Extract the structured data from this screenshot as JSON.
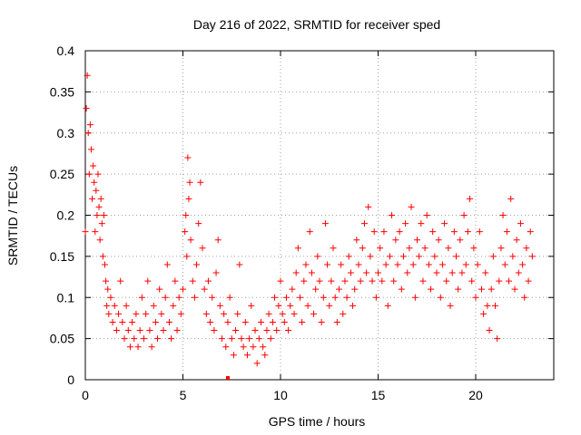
{
  "chart_data": {
    "type": "scatter",
    "title": "Day 216 of 2022, SRMTID for receiver sped",
    "xlabel": "GPS time / hours",
    "ylabel": "SRMTID / TECUs",
    "xlim": [
      0,
      24
    ],
    "ylim": [
      0,
      0.4
    ],
    "x_ticks": [
      0,
      5,
      10,
      15,
      20
    ],
    "x_tick_labels": [
      "0",
      "5",
      "10",
      "15",
      "20"
    ],
    "y_ticks": [
      0,
      0.05,
      0.1,
      0.15,
      0.2,
      0.25,
      0.3,
      0.35,
      0.4
    ],
    "y_tick_labels": [
      "0",
      "0.05",
      "0.1",
      "0.15",
      "0.2",
      "0.25",
      "0.3",
      "0.35",
      "0.4"
    ],
    "grid": true,
    "marker": "+",
    "color": "#ff0000",
    "series": [
      {
        "name": "SRMTID",
        "points": [
          [
            0.0,
            0.18
          ],
          [
            0.05,
            0.33
          ],
          [
            0.1,
            0.37
          ],
          [
            0.15,
            0.3
          ],
          [
            0.2,
            0.25
          ],
          [
            0.25,
            0.31
          ],
          [
            0.3,
            0.28
          ],
          [
            0.35,
            0.22
          ],
          [
            0.4,
            0.26
          ],
          [
            0.45,
            0.24
          ],
          [
            0.5,
            0.18
          ],
          [
            0.55,
            0.23
          ],
          [
            0.6,
            0.2
          ],
          [
            0.65,
            0.25
          ],
          [
            0.7,
            0.21
          ],
          [
            0.75,
            0.17
          ],
          [
            0.8,
            0.22
          ],
          [
            0.85,
            0.19
          ],
          [
            0.9,
            0.15
          ],
          [
            0.95,
            0.2
          ],
          [
            1.0,
            0.14
          ],
          [
            1.05,
            0.12
          ],
          [
            1.1,
            0.09
          ],
          [
            1.15,
            0.11
          ],
          [
            1.2,
            0.08
          ],
          [
            1.3,
            0.1
          ],
          [
            1.4,
            0.07
          ],
          [
            1.5,
            0.09
          ],
          [
            1.6,
            0.06
          ],
          [
            1.7,
            0.08
          ],
          [
            1.8,
            0.12
          ],
          [
            1.9,
            0.07
          ],
          [
            2.0,
            0.05
          ],
          [
            2.1,
            0.09
          ],
          [
            2.2,
            0.06
          ],
          [
            2.3,
            0.04
          ],
          [
            2.4,
            0.07
          ],
          [
            2.5,
            0.05
          ],
          [
            2.6,
            0.08
          ],
          [
            2.7,
            0.04
          ],
          [
            2.8,
            0.06
          ],
          [
            2.9,
            0.1
          ],
          [
            3.0,
            0.05
          ],
          [
            3.1,
            0.08
          ],
          [
            3.2,
            0.12
          ],
          [
            3.3,
            0.06
          ],
          [
            3.4,
            0.04
          ],
          [
            3.5,
            0.09
          ],
          [
            3.6,
            0.07
          ],
          [
            3.7,
            0.05
          ],
          [
            3.8,
            0.11
          ],
          [
            3.9,
            0.08
          ],
          [
            4.0,
            0.06
          ],
          [
            4.1,
            0.1
          ],
          [
            4.2,
            0.14
          ],
          [
            4.3,
            0.07
          ],
          [
            4.4,
            0.05
          ],
          [
            4.5,
            0.09
          ],
          [
            4.6,
            0.12
          ],
          [
            4.7,
            0.06
          ],
          [
            4.8,
            0.1
          ],
          [
            4.9,
            0.08
          ],
          [
            5.0,
            0.11
          ],
          [
            5.1,
            0.18
          ],
          [
            5.15,
            0.2
          ],
          [
            5.2,
            0.15
          ],
          [
            5.25,
            0.27
          ],
          [
            5.3,
            0.22
          ],
          [
            5.35,
            0.24
          ],
          [
            5.4,
            0.17
          ],
          [
            5.5,
            0.12
          ],
          [
            5.6,
            0.1
          ],
          [
            5.7,
            0.14
          ],
          [
            5.8,
            0.19
          ],
          [
            5.9,
            0.24
          ],
          [
            6.0,
            0.16
          ],
          [
            6.1,
            0.11
          ],
          [
            6.2,
            0.08
          ],
          [
            6.3,
            0.12
          ],
          [
            6.4,
            0.07
          ],
          [
            6.5,
            0.1
          ],
          [
            6.6,
            0.06
          ],
          [
            6.7,
            0.13
          ],
          [
            6.8,
            0.17
          ],
          [
            6.9,
            0.09
          ],
          [
            7.0,
            0.05
          ],
          [
            7.1,
            0.08
          ],
          [
            7.2,
            0.04
          ],
          [
            7.3,
            0.07
          ],
          [
            7.4,
            0.1
          ],
          [
            7.5,
            0.05
          ],
          [
            7.6,
            0.03
          ],
          [
            7.7,
            0.06
          ],
          [
            7.8,
            0.08
          ],
          [
            7.9,
            0.14
          ],
          [
            8.0,
            0.05
          ],
          [
            8.1,
            0.04
          ],
          [
            8.2,
            0.07
          ],
          [
            8.3,
            0.03
          ],
          [
            8.4,
            0.05
          ],
          [
            8.5,
            0.09
          ],
          [
            8.6,
            0.04
          ],
          [
            8.7,
            0.06
          ],
          [
            8.8,
            0.02
          ],
          [
            8.9,
            0.05
          ],
          [
            9.0,
            0.07
          ],
          [
            9.1,
            0.04
          ],
          [
            9.2,
            0.03
          ],
          [
            9.3,
            0.06
          ],
          [
            9.4,
            0.08
          ],
          [
            9.5,
            0.05
          ],
          [
            9.6,
            0.07
          ],
          [
            9.7,
            0.1
          ],
          [
            9.8,
            0.06
          ],
          [
            9.9,
            0.09
          ],
          [
            10.0,
            0.12
          ],
          [
            10.1,
            0.08
          ],
          [
            10.2,
            0.07
          ],
          [
            10.3,
            0.1
          ],
          [
            10.4,
            0.06
          ],
          [
            10.5,
            0.09
          ],
          [
            10.6,
            0.11
          ],
          [
            10.7,
            0.08
          ],
          [
            10.8,
            0.13
          ],
          [
            10.9,
            0.16
          ],
          [
            11.0,
            0.1
          ],
          [
            11.1,
            0.07
          ],
          [
            11.2,
            0.12
          ],
          [
            11.3,
            0.14
          ],
          [
            11.4,
            0.09
          ],
          [
            11.5,
            0.18
          ],
          [
            11.6,
            0.13
          ],
          [
            11.7,
            0.08
          ],
          [
            11.8,
            0.11
          ],
          [
            11.9,
            0.15
          ],
          [
            12.0,
            0.12
          ],
          [
            12.1,
            0.07
          ],
          [
            12.2,
            0.1
          ],
          [
            12.3,
            0.19
          ],
          [
            12.4,
            0.14
          ],
          [
            12.5,
            0.09
          ],
          [
            12.6,
            0.12
          ],
          [
            12.7,
            0.16
          ],
          [
            12.8,
            0.1
          ],
          [
            12.9,
            0.07
          ],
          [
            13.0,
            0.11
          ],
          [
            13.1,
            0.14
          ],
          [
            13.2,
            0.08
          ],
          [
            13.3,
            0.12
          ],
          [
            13.4,
            0.1
          ],
          [
            13.5,
            0.15
          ],
          [
            13.6,
            0.13
          ],
          [
            13.7,
            0.09
          ],
          [
            13.8,
            0.11
          ],
          [
            13.9,
            0.17
          ],
          [
            14.0,
            0.14
          ],
          [
            14.1,
            0.12
          ],
          [
            14.2,
            0.16
          ],
          [
            14.3,
            0.19
          ],
          [
            14.4,
            0.13
          ],
          [
            14.5,
            0.21
          ],
          [
            14.6,
            0.15
          ],
          [
            14.7,
            0.12
          ],
          [
            14.8,
            0.18
          ],
          [
            14.9,
            0.1
          ],
          [
            15.0,
            0.13
          ],
          [
            15.1,
            0.16
          ],
          [
            15.2,
            0.12
          ],
          [
            15.3,
            0.18
          ],
          [
            15.4,
            0.14
          ],
          [
            15.5,
            0.09
          ],
          [
            15.6,
            0.15
          ],
          [
            15.7,
            0.2
          ],
          [
            15.8,
            0.12
          ],
          [
            15.9,
            0.17
          ],
          [
            16.0,
            0.14
          ],
          [
            16.1,
            0.18
          ],
          [
            16.2,
            0.11
          ],
          [
            16.3,
            0.15
          ],
          [
            16.4,
            0.19
          ],
          [
            16.5,
            0.13
          ],
          [
            16.6,
            0.16
          ],
          [
            16.7,
            0.21
          ],
          [
            16.8,
            0.14
          ],
          [
            16.9,
            0.1
          ],
          [
            17.0,
            0.17
          ],
          [
            17.1,
            0.15
          ],
          [
            17.2,
            0.19
          ],
          [
            17.3,
            0.12
          ],
          [
            17.4,
            0.16
          ],
          [
            17.5,
            0.2
          ],
          [
            17.6,
            0.14
          ],
          [
            17.7,
            0.11
          ],
          [
            17.8,
            0.18
          ],
          [
            17.9,
            0.15
          ],
          [
            18.0,
            0.13
          ],
          [
            18.1,
            0.17
          ],
          [
            18.2,
            0.1
          ],
          [
            18.3,
            0.14
          ],
          [
            18.4,
            0.19
          ],
          [
            18.5,
            0.12
          ],
          [
            18.6,
            0.16
          ],
          [
            18.7,
            0.09
          ],
          [
            18.8,
            0.13
          ],
          [
            18.9,
            0.18
          ],
          [
            19.0,
            0.15
          ],
          [
            19.1,
            0.11
          ],
          [
            19.2,
            0.17
          ],
          [
            19.3,
            0.13
          ],
          [
            19.4,
            0.2
          ],
          [
            19.5,
            0.14
          ],
          [
            19.6,
            0.18
          ],
          [
            19.7,
            0.22
          ],
          [
            19.8,
            0.12
          ],
          [
            19.9,
            0.16
          ],
          [
            20.0,
            0.1
          ],
          [
            20.1,
            0.14
          ],
          [
            20.2,
            0.18
          ],
          [
            20.3,
            0.11
          ],
          [
            20.4,
            0.08
          ],
          [
            20.5,
            0.13
          ],
          [
            20.6,
            0.09
          ],
          [
            20.7,
            0.06
          ],
          [
            20.8,
            0.11
          ],
          [
            20.9,
            0.15
          ],
          [
            21.0,
            0.09
          ],
          [
            21.1,
            0.05
          ],
          [
            21.2,
            0.12
          ],
          [
            21.3,
            0.16
          ],
          [
            21.4,
            0.2
          ],
          [
            21.5,
            0.14
          ],
          [
            21.6,
            0.18
          ],
          [
            21.7,
            0.12
          ],
          [
            21.8,
            0.22
          ],
          [
            21.9,
            0.15
          ],
          [
            22.0,
            0.11
          ],
          [
            22.1,
            0.17
          ],
          [
            22.2,
            0.13
          ],
          [
            22.3,
            0.19
          ],
          [
            22.4,
            0.14
          ],
          [
            22.5,
            0.1
          ],
          [
            22.6,
            0.16
          ],
          [
            22.7,
            0.12
          ],
          [
            22.8,
            0.18
          ],
          [
            22.9,
            0.15
          ]
        ]
      }
    ]
  }
}
